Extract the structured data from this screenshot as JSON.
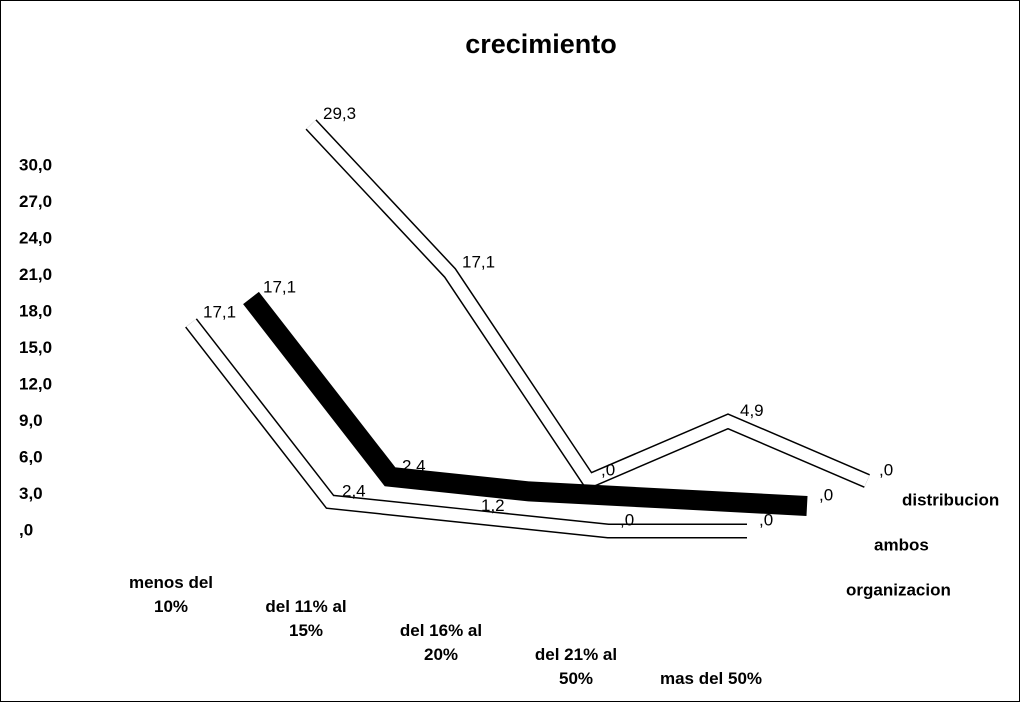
{
  "chart_data": {
    "type": "line3d",
    "title": "crecimiento",
    "categories": [
      "menos del 10%",
      "del 11% al 15%",
      "del 16% al 20%",
      "del 21% al 50%",
      "mas del 50%"
    ],
    "ylim": [
      0,
      30
    ],
    "yticks": [
      {
        "value": 0,
        "label": ",0"
      },
      {
        "value": 3,
        "label": "3,0"
      },
      {
        "value": 6,
        "label": "6,0"
      },
      {
        "value": 9,
        "label": "9,0"
      },
      {
        "value": 12,
        "label": "12,0"
      },
      {
        "value": 15,
        "label": "15,0"
      },
      {
        "value": 18,
        "label": "18,0"
      },
      {
        "value": 21,
        "label": "21,0"
      },
      {
        "value": 24,
        "label": "24,0"
      },
      {
        "value": 27,
        "label": "27,0"
      },
      {
        "value": 30,
        "label": "30,0"
      }
    ],
    "series": [
      {
        "name": "organizacion",
        "color": "#ffffff",
        "values": [
          17.1,
          2.4,
          1.2,
          0,
          0
        ],
        "value_labels": [
          "17,1",
          "2,4",
          "1,2",
          ",0",
          ",0"
        ]
      },
      {
        "name": "ambos",
        "color": "#000000",
        "values": [
          17.1,
          2.4,
          1.2,
          0.6,
          0
        ],
        "value_labels": [
          "17,1",
          "2,4",
          null,
          null,
          ",0"
        ]
      },
      {
        "name": "distribucion",
        "color": "#ffffff",
        "values": [
          29.3,
          17.1,
          0,
          4.9,
          0
        ],
        "value_labels": [
          "29,3",
          "17,1",
          ",0",
          "4,9",
          ",0"
        ]
      }
    ]
  }
}
